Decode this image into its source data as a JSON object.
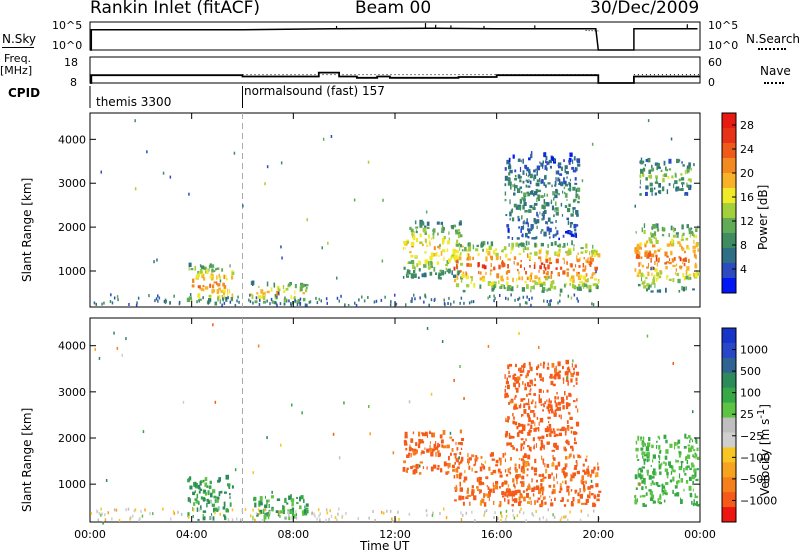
{
  "header": {
    "station": "Rankin Inlet (fitACF)",
    "beam": "Beam 00",
    "date": "30/Dec/2009"
  },
  "top_panels": {
    "nsky_label": "N.Sky",
    "nsky_ticks": [
      "10^5",
      "10^0"
    ],
    "nsearch_label": "N.Search",
    "freq_label": "Freq.",
    "freq_unit": "[MHz]",
    "freq_ticks": [
      "18",
      "8"
    ],
    "nave_label": "Nave",
    "nave_ticks": [
      "60",
      "0"
    ],
    "cpid_label": "CPID",
    "cpid_segments": [
      {
        "label": "themis 3300"
      },
      {
        "label": "normalsound (fast) 157"
      }
    ]
  },
  "colors": {
    "power_scale": [
      "#0018f5",
      "#2c4bc0",
      "#2f6f86",
      "#3f8c63",
      "#62ab56",
      "#a3d03a",
      "#f0ea29",
      "#f7b22a",
      "#f28a20",
      "#ef5a18",
      "#e83217",
      "#e81b12"
    ],
    "velocity_scale": [
      "#ee1611",
      "#f55a18",
      "#f5801b",
      "#f6a41f",
      "#f7c624",
      "#cfcfcf",
      "#bfbfbf",
      "#5cc343",
      "#36a847",
      "#2c8a5b",
      "#2f6391",
      "#2747c8",
      "#1734c9"
    ]
  },
  "chart_data": [
    {
      "type": "heatmap",
      "name": "power-panel",
      "xlabel": "Time UT",
      "ylabel": "Slant Range [km]",
      "x_ticks": [
        "00:00",
        "04:00",
        "08:00",
        "12:00",
        "16:00",
        "20:00",
        "00:00"
      ],
      "x_range_hours": [
        0,
        24
      ],
      "y_ticks": [
        "1000",
        "2000",
        "3000",
        "4000"
      ],
      "y_range_km": [
        180,
        4600
      ],
      "colorbar_label": "Power [dB]",
      "colorbar_ticks": [
        "4",
        "8",
        "12",
        "16",
        "20",
        "24",
        "28"
      ],
      "colorbar_range": [
        0,
        30
      ],
      "cpid_change_hour": 6.0,
      "blobs": [
        {
          "t0": 3.8,
          "t1": 5.6,
          "r0": 200,
          "r1": 1100,
          "v": 22
        },
        {
          "t0": 6.3,
          "t1": 8.5,
          "r0": 200,
          "r1": 700,
          "v": 18
        },
        {
          "t0": 12.3,
          "t1": 14.6,
          "r0": 800,
          "r1": 2100,
          "v": 18
        },
        {
          "t0": 14.3,
          "t1": 20.0,
          "r0": 500,
          "r1": 1600,
          "v": 24
        },
        {
          "t0": 16.3,
          "t1": 19.2,
          "r0": 1700,
          "r1": 3600,
          "v": 8
        },
        {
          "t0": 21.4,
          "t1": 23.9,
          "r0": 500,
          "r1": 2000,
          "v": 22
        },
        {
          "t0": 21.6,
          "t1": 23.6,
          "r0": 2700,
          "r1": 3500,
          "v": 12
        }
      ]
    },
    {
      "type": "heatmap",
      "name": "velocity-panel",
      "xlabel": "Time UT",
      "ylabel": "Slant Range [km]",
      "x_ticks": [
        "00:00",
        "04:00",
        "08:00",
        "12:00",
        "16:00",
        "20:00",
        "00:00"
      ],
      "x_range_hours": [
        0,
        24
      ],
      "y_ticks": [
        "1000",
        "2000",
        "3000",
        "4000"
      ],
      "y_range_km": [
        180,
        4600
      ],
      "colorbar_label": "Velocity [m s^-1]",
      "colorbar_ticks": [
        "1000",
        "500",
        "100",
        "25",
        "−25",
        "−100",
        "−500",
        "−1000"
      ],
      "cpid_change_hour": 6.0,
      "blobs": [
        {
          "t0": 3.8,
          "t1": 5.6,
          "r0": 200,
          "r1": 1100,
          "v": 100
        },
        {
          "t0": 6.3,
          "t1": 8.5,
          "r0": 200,
          "r1": 700,
          "v": 80
        },
        {
          "t0": 12.3,
          "t1": 14.6,
          "r0": 1200,
          "r1": 2100,
          "v": -150
        },
        {
          "t0": 14.3,
          "t1": 20.0,
          "r0": 500,
          "r1": 1600,
          "v": -120
        },
        {
          "t0": 16.3,
          "t1": 19.2,
          "r0": 1700,
          "r1": 3600,
          "v": -200
        },
        {
          "t0": 21.4,
          "t1": 23.9,
          "r0": 500,
          "r1": 2000,
          "v": 60
        }
      ]
    },
    {
      "type": "line",
      "name": "nsky-panel",
      "series": [
        {
          "x": [
            0.0,
            0.05,
            0.05,
            6.0,
            9.5,
            13.5,
            16.0,
            19.9,
            20.0,
            21.4,
            21.4,
            23.9
          ],
          "values": [
            0,
            0,
            3.6,
            3.6,
            3.8,
            3.9,
            3.8,
            3.8,
            0,
            0,
            3.8,
            3.8
          ]
        }
      ]
    },
    {
      "type": "line",
      "name": "freq-panel",
      "series": [
        {
          "x": [
            0.0,
            0.05,
            0.05,
            6.0,
            6.0,
            9.0,
            9.0,
            9.8,
            9.8,
            10.5,
            10.5,
            11.3,
            11.3,
            11.8,
            11.8,
            14.5,
            14.5,
            16.0,
            16.0,
            20.0,
            20.0,
            21.4,
            21.4,
            24.0
          ],
          "values": [
            8,
            8,
            11,
            11,
            10.5,
            10.5,
            12,
            12,
            10.5,
            10.5,
            10,
            10,
            10.5,
            10.5,
            10,
            10,
            10.3,
            10.3,
            11,
            11,
            8,
            8,
            10.5,
            10.5
          ]
        }
      ]
    }
  ]
}
